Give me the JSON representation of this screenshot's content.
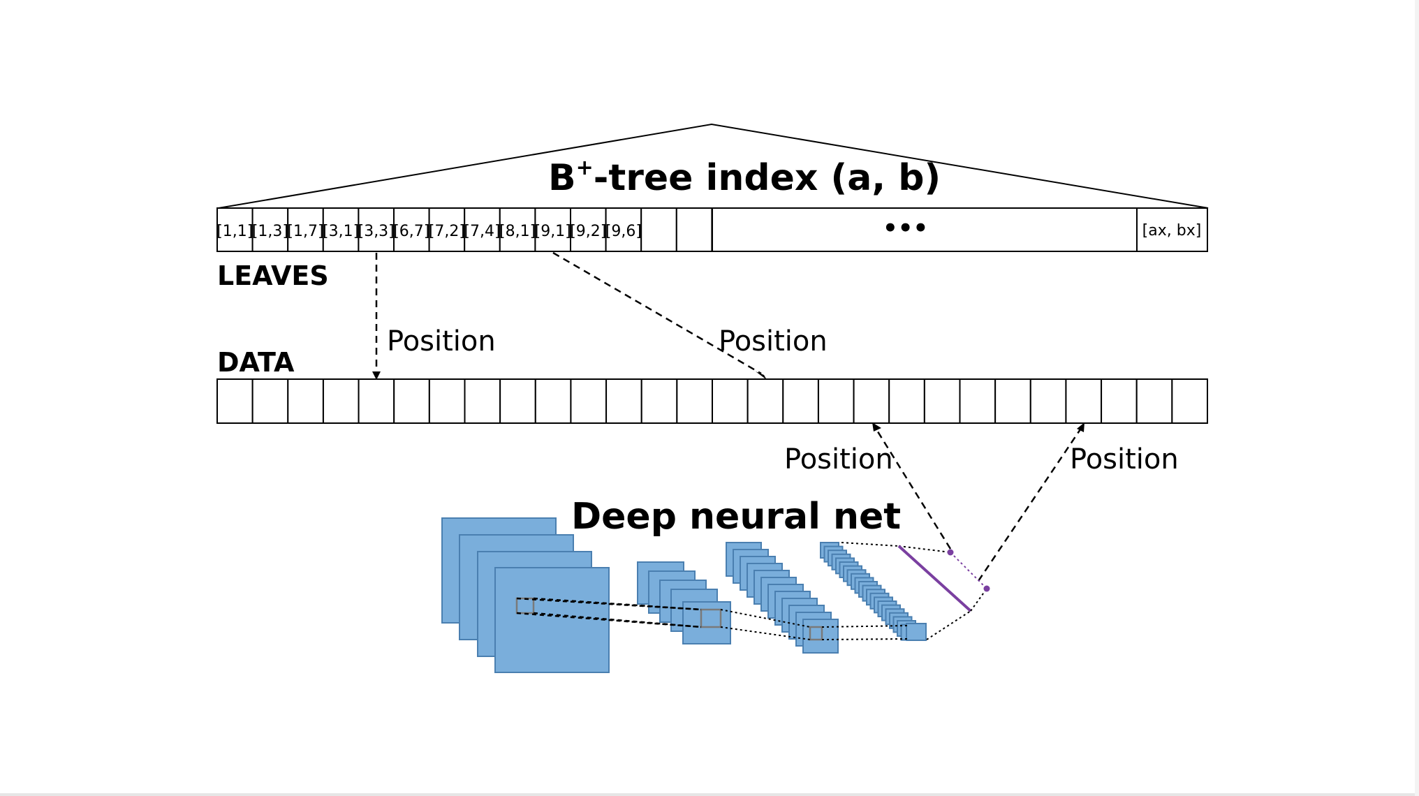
{
  "btree": {
    "title_main": "B",
    "title_sup": "+",
    "title_rest": "-tree index (a, b)",
    "leaves": [
      "[1,1]",
      "[1,3]",
      "[1,7]",
      "[3,1]",
      "[3,3]",
      "[6,7]",
      "[7,2]",
      "[7,4]",
      "[8,1]",
      "[9,1]",
      "[9,2]",
      "[9,6]",
      "",
      ""
    ],
    "ellipsis": "•••",
    "last_leaf": "[ax, bx]",
    "leaves_label": "LEAVES"
  },
  "data": {
    "label": "DATA",
    "cell_count": 28
  },
  "positions": {
    "label_1": "Position",
    "label_2": "Position",
    "label_3": "Position",
    "label_4": "Position"
  },
  "network": {
    "title": "Deep neural net",
    "colors": {
      "feature_map": "#7aaedb",
      "output_line": "#7a3fa0"
    }
  }
}
